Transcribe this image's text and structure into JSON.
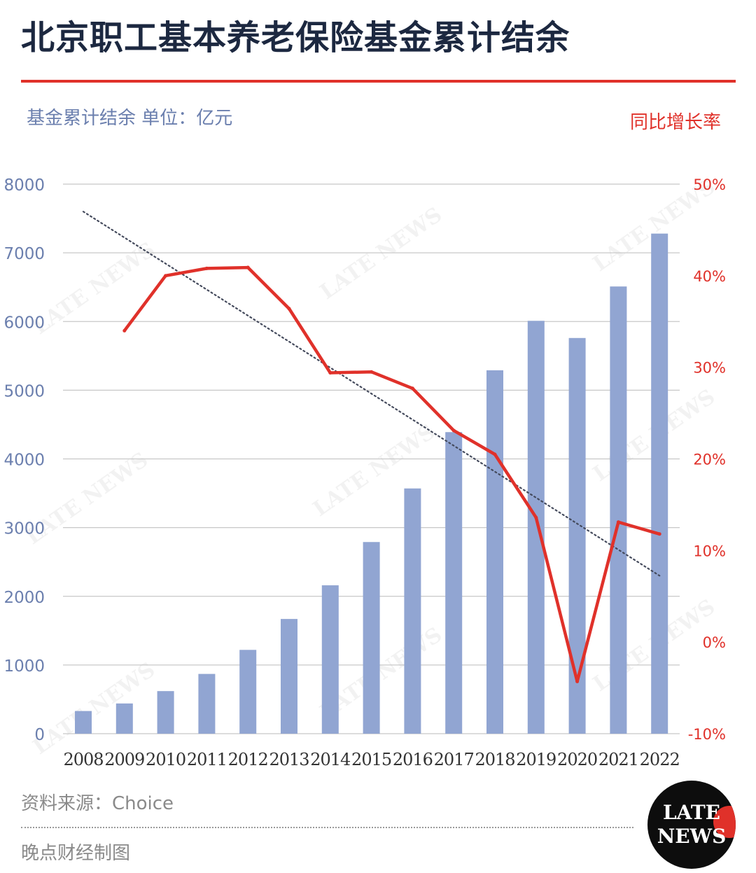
{
  "title": "北京职工基本养老保险基金累计结余",
  "left_axis_label": "基金累计结余 单位：亿元",
  "right_axis_label": "同比增长率",
  "source": "资料来源：Choice",
  "credit": "晚点财经制图",
  "logo": {
    "line1": "LATE",
    "line2": "NEWS"
  },
  "watermark": "LATE NEWS",
  "colors": {
    "title": "#1c2840",
    "bar": "#91a5d2",
    "line": "#e0312a",
    "left_axis": "#6b7fae",
    "right_axis": "#e0312a",
    "grid": "#c8c8c8",
    "trend": "#444a5c"
  },
  "chart_data": {
    "type": "bar",
    "categories": [
      "2008",
      "2009",
      "2010",
      "2011",
      "2012",
      "2013",
      "2014",
      "2015",
      "2016",
      "2017",
      "2018",
      "2019",
      "2020",
      "2021",
      "2022"
    ],
    "series": [
      {
        "axis": "left",
        "type": "bar",
        "values": [
          330,
          440,
          620,
          870,
          1220,
          1670,
          2160,
          2790,
          3570,
          4390,
          5290,
          6010,
          5760,
          6510,
          7280
        ]
      },
      {
        "axis": "right",
        "type": "line",
        "values": [
          null,
          34.0,
          40.0,
          40.8,
          40.9,
          36.4,
          29.4,
          29.5,
          27.7,
          23.1,
          20.5,
          13.6,
          -4.3,
          13.1,
          11.8
        ]
      },
      {
        "axis": "left",
        "type": "trendline",
        "values": [
          7600,
          null,
          null,
          null,
          null,
          null,
          null,
          null,
          null,
          null,
          null,
          null,
          null,
          null,
          2300
        ]
      }
    ],
    "left_axis": {
      "ylim": [
        0,
        8000
      ],
      "ticks": [
        "0",
        "1000",
        "2000",
        "3000",
        "4000",
        "5000",
        "6000",
        "7000",
        "8000"
      ]
    },
    "right_axis": {
      "ylim": [
        -10,
        50
      ],
      "ticks": [
        "-10%",
        "0%",
        "10%",
        "20%",
        "30%",
        "40%",
        "50%"
      ]
    },
    "grid": true,
    "legend": "none"
  }
}
